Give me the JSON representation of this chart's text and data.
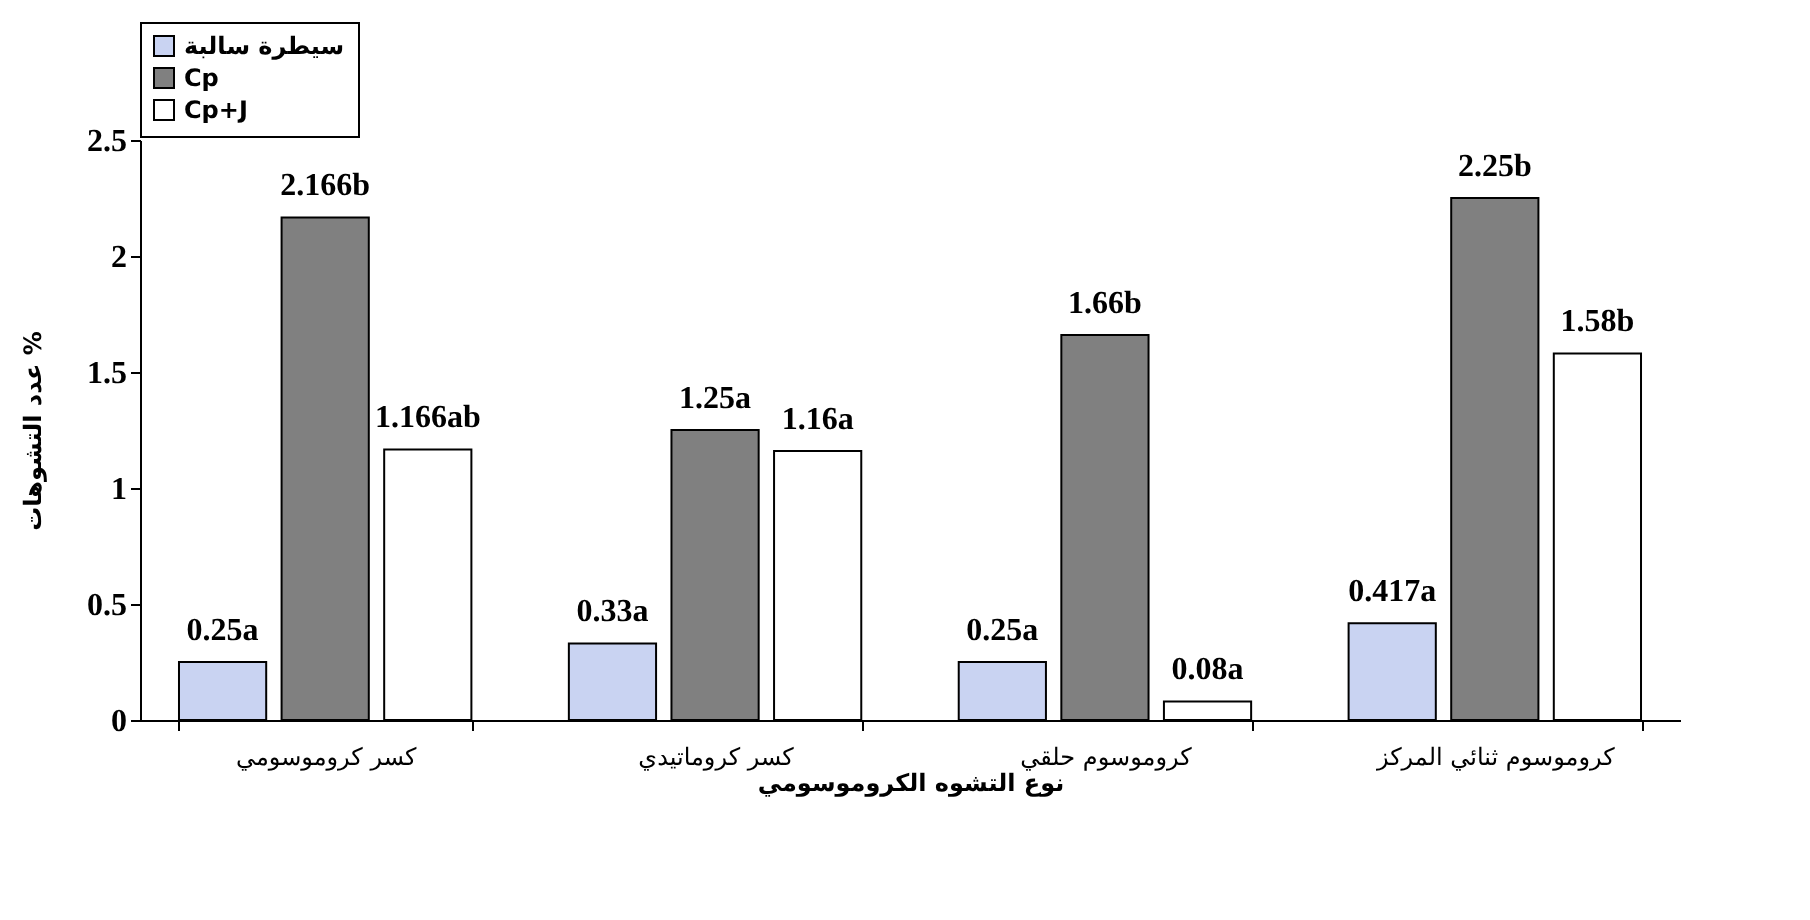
{
  "chart_data": {
    "type": "bar",
    "xlabel": "نوع التشوه الكروموسومي",
    "ylabel": "عدد التشوهات %",
    "categories": [
      "كسر كروموسومي",
      "كسر كروماتيدي",
      "كروموسوم حلقي",
      "كروموسوم ثنائي المركز"
    ],
    "series": [
      {
        "name": "سيطرة سالبة",
        "color": "#c9d3f2",
        "values": [
          0.25,
          0.33,
          0.25,
          0.417
        ],
        "value_labels": [
          "0.25a",
          "0.33a",
          "0.25a",
          "0.417a"
        ]
      },
      {
        "name": "Cp",
        "color": "#808080",
        "values": [
          2.166,
          1.25,
          1.66,
          2.25
        ],
        "value_labels": [
          "2.166b",
          "1.25a",
          "1.66b",
          "2.25b"
        ]
      },
      {
        "name": "Cp+J",
        "color": "#ffffff",
        "values": [
          1.166,
          1.16,
          0.08,
          1.58
        ],
        "value_labels": [
          "1.166ab",
          "1.16a",
          "0.08a",
          "1.58b"
        ]
      }
    ],
    "ylim": [
      0,
      2.5
    ],
    "yticks": [
      0,
      0.5,
      1,
      1.5,
      2,
      2.5
    ],
    "legend": "top"
  }
}
